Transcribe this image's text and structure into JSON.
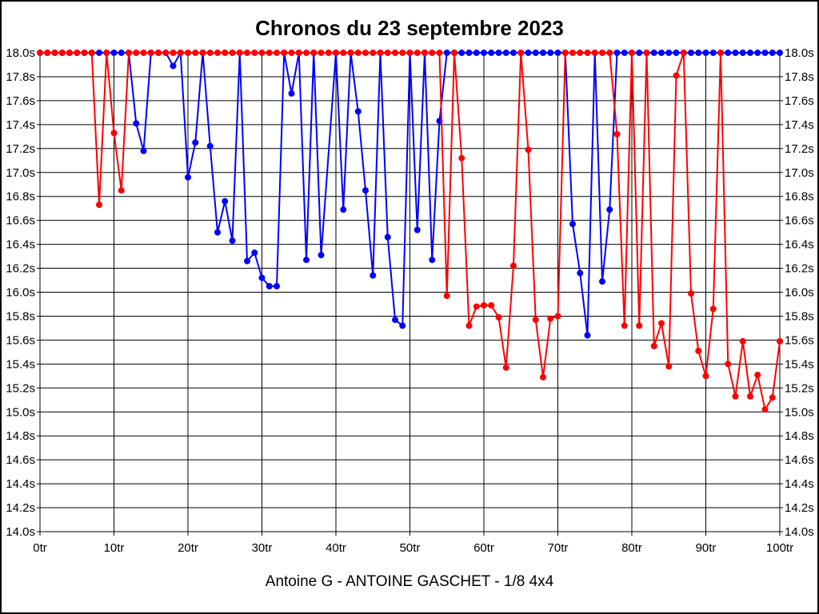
{
  "chart_data": {
    "type": "line",
    "title": "Chronos du 23 septembre 2023",
    "subtitle": "Antoine G - ANTOINE GASCHET - 1/8 4x4",
    "x_unit": "tr",
    "y_unit": "s",
    "xlim": [
      0,
      100
    ],
    "ylim": [
      14.0,
      18.0
    ],
    "x_tick_step": 10,
    "y_tick_step": 0.2,
    "clip_max": 18.0,
    "grid": true,
    "y_labels_both_sides": true,
    "x_ticks": [
      "0tr",
      "10tr",
      "20tr",
      "30tr",
      "40tr",
      "50tr",
      "60tr",
      "70tr",
      "80tr",
      "90tr",
      "100tr"
    ],
    "y_ticks": [
      "18.0s",
      "17.8s",
      "17.6s",
      "17.4s",
      "17.2s",
      "17.0s",
      "16.8s",
      "16.6s",
      "16.4s",
      "16.2s",
      "16.0s",
      "15.8s",
      "15.6s",
      "15.4s",
      "15.2s",
      "15.0s",
      "14.8s",
      "14.6s",
      "14.4s",
      "14.2s",
      "14.0s"
    ],
    "colors": {
      "blue_series": "#0000ff",
      "red_series": "#ff0000",
      "grid": "#000000",
      "background": "#ffffff"
    },
    "series": [
      {
        "name": "blue",
        "color": "#0000ff",
        "points": [
          [
            0,
            18
          ],
          [
            1,
            18
          ],
          [
            2,
            18
          ],
          [
            3,
            18
          ],
          [
            4,
            18
          ],
          [
            5,
            18
          ],
          [
            6,
            18
          ],
          [
            7,
            18
          ],
          [
            8,
            18
          ],
          [
            9,
            18
          ],
          [
            10,
            18
          ],
          [
            11,
            18
          ],
          [
            12,
            18
          ],
          [
            13,
            17.41
          ],
          [
            14,
            17.18
          ],
          [
            15,
            18
          ],
          [
            16,
            18
          ],
          [
            17,
            18
          ],
          [
            18,
            17.89
          ],
          [
            19,
            18
          ],
          [
            20,
            16.96
          ],
          [
            21,
            17.25
          ],
          [
            22,
            18
          ],
          [
            23,
            17.22
          ],
          [
            24,
            16.5
          ],
          [
            25,
            16.76
          ],
          [
            26,
            16.43
          ],
          [
            27,
            18
          ],
          [
            28,
            16.26
          ],
          [
            29,
            16.33
          ],
          [
            30,
            16.12
          ],
          [
            31,
            16.05
          ],
          [
            32,
            16.05
          ],
          [
            33,
            18
          ],
          [
            34,
            17.66
          ],
          [
            35,
            18
          ],
          [
            36,
            16.27
          ],
          [
            37,
            18
          ],
          [
            38,
            16.31
          ],
          [
            40,
            18
          ],
          [
            41,
            16.69
          ],
          [
            42,
            18
          ],
          [
            43,
            17.51
          ],
          [
            44,
            16.85
          ],
          [
            45,
            16.14
          ],
          [
            46,
            18
          ],
          [
            47,
            16.46
          ],
          [
            48,
            15.77
          ],
          [
            49,
            15.72
          ],
          [
            50,
            18
          ],
          [
            51,
            16.52
          ],
          [
            52,
            18
          ],
          [
            53,
            16.27
          ],
          [
            54,
            17.43
          ],
          [
            55,
            18
          ],
          [
            56,
            18
          ],
          [
            57,
            18
          ],
          [
            58,
            18
          ],
          [
            59,
            18
          ],
          [
            60,
            18
          ],
          [
            61,
            18
          ],
          [
            62,
            18
          ],
          [
            63,
            18
          ],
          [
            64,
            18
          ],
          [
            65,
            18
          ],
          [
            66,
            18
          ],
          [
            67,
            18
          ],
          [
            68,
            18
          ],
          [
            69,
            18
          ],
          [
            70,
            18
          ],
          [
            71,
            18
          ],
          [
            72,
            16.57
          ],
          [
            73,
            16.16
          ],
          [
            74,
            15.64
          ],
          [
            75,
            18
          ],
          [
            76,
            16.09
          ],
          [
            77,
            16.69
          ],
          [
            78,
            18
          ],
          [
            79,
            18
          ],
          [
            80,
            18
          ],
          [
            81,
            18
          ],
          [
            82,
            18
          ],
          [
            83,
            18
          ],
          [
            84,
            18
          ],
          [
            85,
            18
          ],
          [
            86,
            18
          ],
          [
            87,
            18
          ],
          [
            88,
            18
          ],
          [
            89,
            18
          ],
          [
            90,
            18
          ],
          [
            91,
            18
          ],
          [
            92,
            18
          ],
          [
            93,
            18
          ],
          [
            94,
            18
          ],
          [
            95,
            18
          ],
          [
            96,
            18
          ],
          [
            97,
            18
          ],
          [
            98,
            18
          ],
          [
            99,
            18
          ],
          [
            100,
            18
          ]
        ]
      },
      {
        "name": "red",
        "color": "#ff0000",
        "points": [
          [
            0,
            18
          ],
          [
            1,
            18
          ],
          [
            2,
            18
          ],
          [
            3,
            18
          ],
          [
            4,
            18
          ],
          [
            5,
            18
          ],
          [
            6,
            18
          ],
          [
            7,
            18
          ],
          [
            8,
            16.73
          ],
          [
            9,
            18
          ],
          [
            10,
            17.33
          ],
          [
            11,
            16.85
          ],
          [
            12,
            18
          ],
          [
            13,
            18
          ],
          [
            14,
            18
          ],
          [
            15,
            18
          ],
          [
            16,
            18
          ],
          [
            17,
            18
          ],
          [
            18,
            18
          ],
          [
            19,
            18
          ],
          [
            20,
            18
          ],
          [
            21,
            18
          ],
          [
            22,
            18
          ],
          [
            23,
            18
          ],
          [
            24,
            18
          ],
          [
            25,
            18
          ],
          [
            26,
            18
          ],
          [
            27,
            18
          ],
          [
            28,
            18
          ],
          [
            29,
            18
          ],
          [
            30,
            18
          ],
          [
            31,
            18
          ],
          [
            32,
            18
          ],
          [
            33,
            18
          ],
          [
            34,
            18
          ],
          [
            35,
            18
          ],
          [
            36,
            18
          ],
          [
            37,
            18
          ],
          [
            38,
            18
          ],
          [
            39,
            18
          ],
          [
            40,
            18
          ],
          [
            41,
            18
          ],
          [
            42,
            18
          ],
          [
            43,
            18
          ],
          [
            44,
            18
          ],
          [
            45,
            18
          ],
          [
            46,
            18
          ],
          [
            47,
            18
          ],
          [
            48,
            18
          ],
          [
            49,
            18
          ],
          [
            50,
            18
          ],
          [
            51,
            18
          ],
          [
            52,
            18
          ],
          [
            53,
            18
          ],
          [
            54,
            18
          ],
          [
            55,
            15.97
          ],
          [
            56,
            18
          ],
          [
            57,
            17.12
          ],
          [
            58,
            15.72
          ],
          [
            59,
            15.88
          ],
          [
            60,
            15.89
          ],
          [
            61,
            15.89
          ],
          [
            62,
            15.79
          ],
          [
            63,
            15.37
          ],
          [
            64,
            16.22
          ],
          [
            65,
            18
          ],
          [
            66,
            17.19
          ],
          [
            67,
            15.77
          ],
          [
            68,
            15.29
          ],
          [
            69,
            15.78
          ],
          [
            70,
            15.8
          ],
          [
            71,
            18
          ],
          [
            72,
            18
          ],
          [
            73,
            18
          ],
          [
            74,
            18
          ],
          [
            75,
            18
          ],
          [
            76,
            18
          ],
          [
            77,
            18
          ],
          [
            78,
            17.32
          ],
          [
            79,
            15.72
          ],
          [
            80,
            18
          ],
          [
            81,
            15.72
          ],
          [
            82,
            18
          ],
          [
            83,
            15.55
          ],
          [
            84,
            15.74
          ],
          [
            85,
            15.38
          ],
          [
            86,
            17.81
          ],
          [
            87,
            18
          ],
          [
            88,
            15.99
          ],
          [
            89,
            15.51
          ],
          [
            90,
            15.3
          ],
          [
            91,
            15.86
          ],
          [
            92,
            18
          ],
          [
            93,
            15.4
          ],
          [
            94,
            15.13
          ],
          [
            95,
            15.59
          ],
          [
            96,
            15.13
          ],
          [
            97,
            15.31
          ],
          [
            98,
            15.02
          ],
          [
            99,
            15.12
          ],
          [
            100,
            15.59
          ]
        ]
      }
    ]
  }
}
